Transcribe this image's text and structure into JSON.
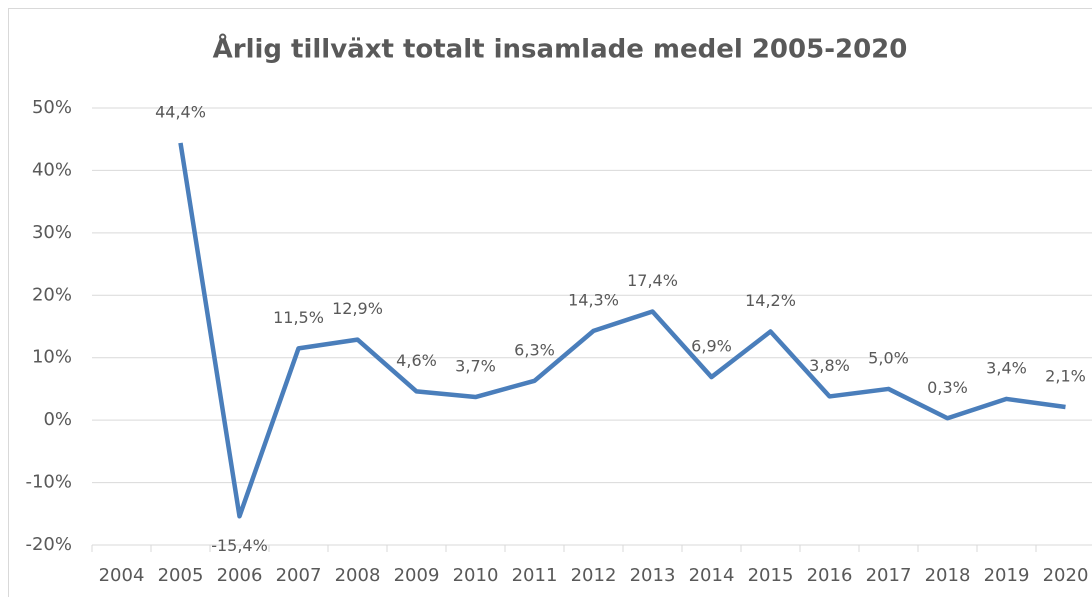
{
  "chart_data": {
    "type": "line",
    "title": "Årlig tillväxt totalt insamlade medel 2005-2020",
    "categories": [
      "2004",
      "2005",
      "2006",
      "2007",
      "2008",
      "2009",
      "2010",
      "2011",
      "2012",
      "2013",
      "2014",
      "2015",
      "2016",
      "2017",
      "2018",
      "2019",
      "2020"
    ],
    "series": [
      {
        "name": null,
        "color": "#4a7ebb",
        "values": [
          null,
          44.4,
          -15.4,
          11.5,
          12.9,
          4.6,
          3.7,
          6.3,
          14.3,
          17.4,
          6.9,
          14.2,
          3.8,
          5.0,
          0.3,
          3.4,
          2.1
        ],
        "value_labels": [
          null,
          "44,4%",
          "-15,4%",
          "11,5%",
          "12,9%",
          "4,6%",
          "3,7%",
          "6,3%",
          "14,3%",
          "17,4%",
          "6,9%",
          "14,2%",
          "3,8%",
          "5,0%",
          "0,3%",
          "3,4%",
          "2,1%"
        ]
      }
    ],
    "ylim": [
      -20,
      50
    ],
    "yticks": [
      {
        "value": -20,
        "label": "-20%"
      },
      {
        "value": -10,
        "label": "-10%"
      },
      {
        "value": 0,
        "label": "0%"
      },
      {
        "value": 10,
        "label": "10%"
      },
      {
        "value": 20,
        "label": "20%"
      },
      {
        "value": 30,
        "label": "30%"
      },
      {
        "value": 40,
        "label": "40%"
      },
      {
        "value": 50,
        "label": "50%"
      }
    ],
    "grid": true
  }
}
